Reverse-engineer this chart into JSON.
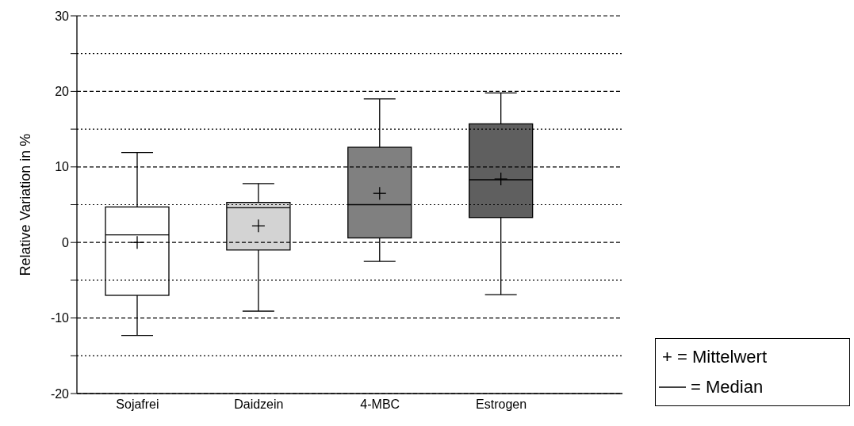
{
  "chart_data": {
    "type": "box",
    "ylabel": "Relative Variation in %",
    "categories": [
      "Sojafrei",
      "Daidzein",
      "4-MBC",
      "Estrogen"
    ],
    "boxes": [
      {
        "low": -12.3,
        "q1": -7,
        "median": 1,
        "q3": 4.7,
        "high": 11.9,
        "mean": 0
      },
      {
        "low": -9.1,
        "q1": -1,
        "median": 4.6,
        "q3": 5.3,
        "high": 7.8,
        "mean": 2.2
      },
      {
        "low": -2.5,
        "q1": 0.6,
        "median": 5,
        "q3": 12.6,
        "high": 19,
        "mean": 6.5
      },
      {
        "low": -6.9,
        "q1": 3.3,
        "median": 8.3,
        "q3": 15.7,
        "high": 19.8,
        "mean": 8.4
      }
    ],
    "colors": [
      "#ffffff",
      "#d3d3d3",
      "#808080",
      "#5f5f5f"
    ],
    "ylim": [
      -20,
      30
    ],
    "yticks": [
      -20,
      {
        "value": -15,
        "label": null
      },
      -10,
      {
        "value": -5,
        "label": null
      },
      0,
      {
        "value": 5,
        "label": null
      },
      10,
      {
        "value": 15,
        "label": null
      },
      20,
      {
        "value": 25,
        "label": null
      },
      30
    ],
    "grid": "y",
    "marker": "cross",
    "annotations": [
      "+ = Mittelwert",
      "= Median"
    ]
  }
}
